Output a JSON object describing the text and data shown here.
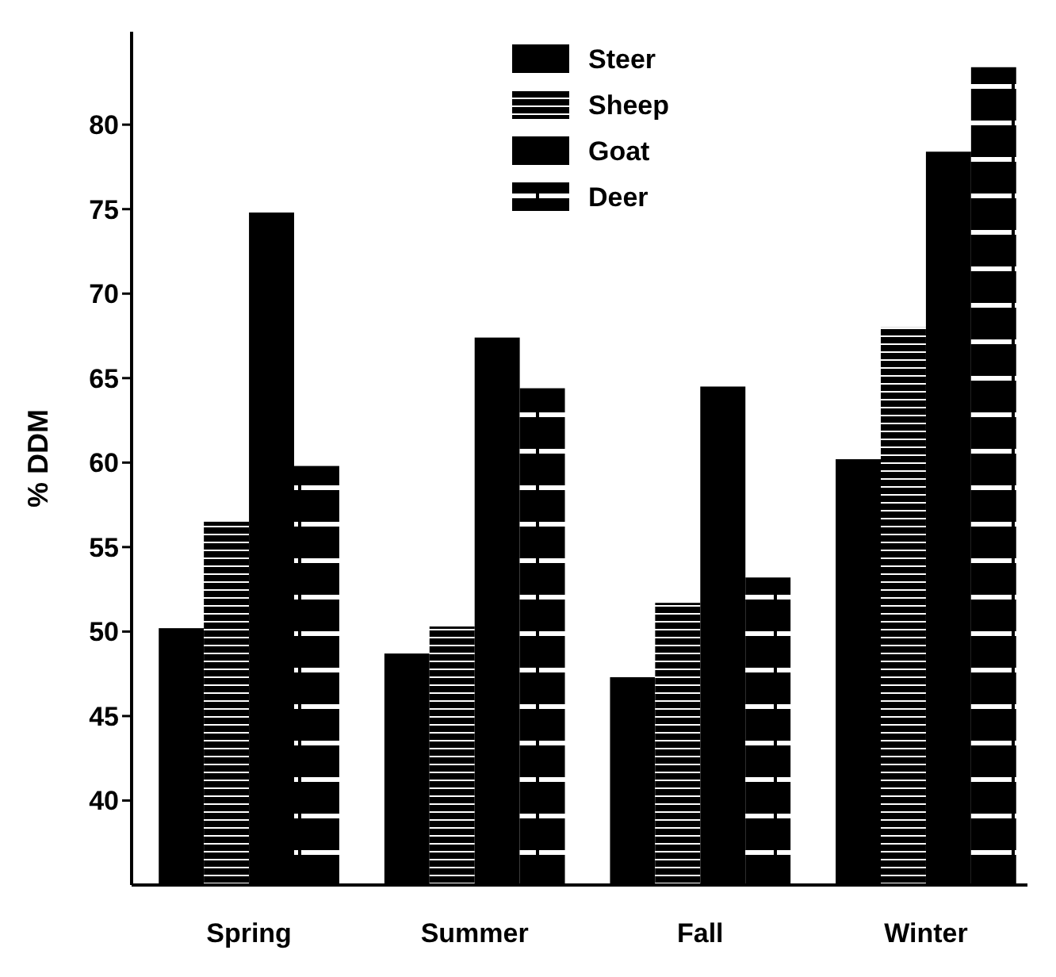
{
  "chart_data": {
    "type": "bar",
    "ylabel": "% DDM",
    "categories": [
      "Spring",
      "Summer",
      "Fall",
      "Winter"
    ],
    "series": [
      {
        "name": "Steer",
        "color": "#000000",
        "values": [
          50.2,
          48.7,
          47.3,
          60.2
        ]
      },
      {
        "name": "Sheep",
        "color": "#000000",
        "values": [
          56.5,
          50.3,
          51.7,
          68
        ]
      },
      {
        "name": "Goat",
        "color": "#000000",
        "values": [
          74.8,
          67.4,
          64.5,
          78.4
        ]
      },
      {
        "name": "Deer",
        "color": "#000000",
        "values": [
          59.8,
          64.4,
          53.2,
          83.4
        ]
      }
    ],
    "ylim": [
      35,
      85.5
    ],
    "yticks": [
      40,
      45,
      50,
      55,
      60,
      65,
      70,
      75,
      80
    ],
    "legend": "top"
  }
}
